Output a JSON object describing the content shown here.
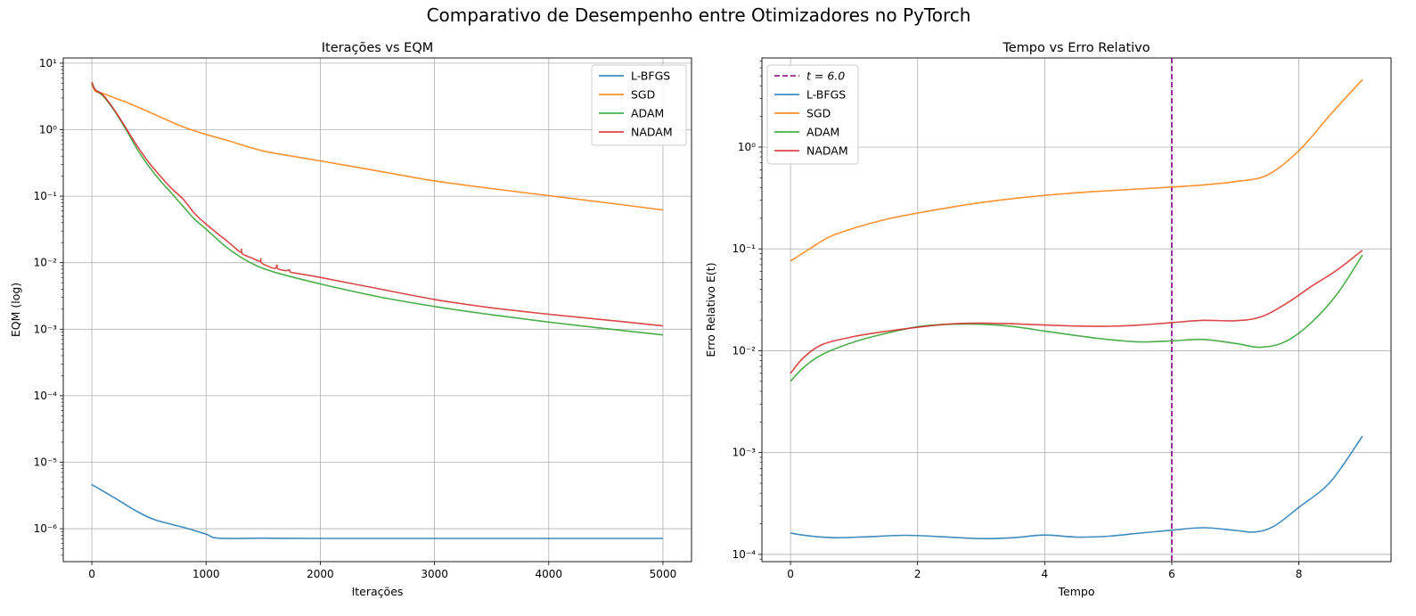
{
  "figure": {
    "title": "Comparativo de Desempenho entre Otimizadores no PyTorch"
  },
  "colors": {
    "L-BFGS": "#1f77b4",
    "SGD": "#ff7f0e",
    "ADAM": "#2ca02c",
    "NADAM": "#d62728",
    "vline": "#800080",
    "grid": "#b0b0b0"
  },
  "chart_data": [
    {
      "type": "line",
      "title": "Iterações vs EQM",
      "xlabel": "Iterações",
      "ylabel": "EQM (log)",
      "yscale": "log",
      "xlim": [
        -250,
        5250
      ],
      "ylim": [
        3.2e-07,
        12
      ],
      "xticks": [
        0,
        1000,
        2000,
        3000,
        4000,
        5000
      ],
      "xtick_labels": [
        "0",
        "1000",
        "2000",
        "3000",
        "4000",
        "5000"
      ],
      "yticks_exp": [
        -6,
        -5,
        -4,
        -3,
        -2,
        -1,
        0,
        1
      ],
      "ytick_labels": [
        "10⁻⁶",
        "10⁻⁵",
        "10⁻⁴",
        "10⁻³",
        "10⁻²",
        "10⁻¹",
        "10⁰",
        "10¹"
      ],
      "grid": true,
      "legend": {
        "position": "upper right",
        "entries": [
          "L-BFGS",
          "SGD",
          "ADAM",
          "NADAM"
        ]
      },
      "series": [
        {
          "name": "L-BFGS",
          "x": [
            0,
            200,
            400,
            560,
            800,
            1000,
            1110,
            1500,
            2000,
            3000,
            4000,
            5000
          ],
          "y": [
            4.6e-06,
            2.9e-06,
            1.8e-06,
            1.35e-06,
            1.05e-06,
            8.3e-07,
            7.2e-07,
            7.2e-07,
            7.15e-07,
            7.15e-07,
            7.15e-07,
            7.15e-07
          ]
        },
        {
          "name": "SGD",
          "x": [
            0,
            30,
            100,
            200,
            300,
            400,
            500,
            600,
            700,
            800,
            1000,
            1200,
            1500,
            2000,
            2500,
            3000,
            3500,
            4000,
            4500,
            5000
          ],
          "y": [
            5.0,
            3.8,
            3.5,
            3.0,
            2.6,
            2.2,
            1.85,
            1.55,
            1.3,
            1.1,
            0.85,
            0.68,
            0.48,
            0.34,
            0.24,
            0.17,
            0.13,
            0.102,
            0.08,
            0.062
          ]
        },
        {
          "name": "ADAM",
          "x": [
            0,
            30,
            100,
            200,
            300,
            400,
            500,
            600,
            700,
            800,
            900,
            1000,
            1200,
            1400,
            1600,
            2000,
            2500,
            3000,
            3500,
            4000,
            4500,
            5000
          ],
          "y": [
            5.0,
            4.0,
            3.2,
            1.9,
            1.0,
            0.5,
            0.28,
            0.17,
            0.11,
            0.07,
            0.045,
            0.032,
            0.016,
            0.0098,
            0.0072,
            0.0048,
            0.0031,
            0.0022,
            0.00165,
            0.00128,
            0.00102,
            0.00082
          ]
        },
        {
          "name": "NADAM",
          "x": [
            0,
            30,
            100,
            200,
            300,
            400,
            500,
            600,
            700,
            800,
            900,
            1000,
            1200,
            1300,
            1310,
            1320,
            1400,
            1470,
            1480,
            1490,
            1600,
            1620,
            1630,
            1700,
            1730,
            1740,
            1800,
            2000,
            2500,
            3000,
            3500,
            4000,
            4500,
            5000
          ],
          "y": [
            5.2,
            4.0,
            3.3,
            1.95,
            1.05,
            0.56,
            0.32,
            0.2,
            0.13,
            0.09,
            0.055,
            0.038,
            0.02,
            0.0145,
            0.016,
            0.0135,
            0.0118,
            0.0105,
            0.0115,
            0.0098,
            0.0082,
            0.0092,
            0.0081,
            0.0076,
            0.0078,
            0.0072,
            0.0069,
            0.006,
            0.0041,
            0.0028,
            0.0021,
            0.00168,
            0.00138,
            0.00112
          ]
        }
      ]
    },
    {
      "type": "line",
      "title": "Tempo vs Erro Relativo",
      "xlabel": "Tempo",
      "ylabel": "Erro Relativo E(t)",
      "yscale": "log",
      "xlim": [
        -0.45,
        9.45
      ],
      "ylim": [
        8.5e-05,
        7.5
      ],
      "xticks": [
        0,
        2,
        4,
        6,
        8
      ],
      "xtick_labels": [
        "0",
        "2",
        "4",
        "6",
        "8"
      ],
      "yticks_exp": [
        -4,
        -3,
        -2,
        -1,
        0
      ],
      "ytick_labels": [
        "10⁻⁴",
        "10⁻³",
        "10⁻²",
        "10⁻¹",
        "10⁰"
      ],
      "grid": true,
      "vline": {
        "x": 6.0,
        "label": "t = 6.0"
      },
      "legend": {
        "position": "upper left",
        "entries": [
          "t = 6.0",
          "L-BFGS",
          "SGD",
          "ADAM",
          "NADAM"
        ]
      },
      "series": [
        {
          "name": "L-BFGS",
          "x": [
            0,
            0.3,
            0.7,
            1.2,
            1.8,
            2.4,
            3.0,
            3.5,
            4.0,
            4.5,
            5.0,
            5.5,
            6.0,
            6.5,
            7.0,
            7.3,
            7.6,
            8.0,
            8.5,
            9.0
          ],
          "y": [
            0.000162,
            0.000152,
            0.000146,
            0.000149,
            0.000154,
            0.000149,
            0.000143,
            0.000146,
            0.000155,
            0.000148,
            0.000151,
            0.000162,
            0.000173,
            0.000183,
            0.000172,
            0.000166,
            0.000188,
            0.00029,
            0.00052,
            0.00145
          ]
        },
        {
          "name": "SGD",
          "x": [
            0,
            0.3,
            0.6,
            1.0,
            1.5,
            2.0,
            2.5,
            3.0,
            3.5,
            4.0,
            4.5,
            5.0,
            5.5,
            6.0,
            6.5,
            7.0,
            7.5,
            8.0,
            8.5,
            9.0
          ],
          "y": [
            0.076,
            0.1,
            0.13,
            0.16,
            0.195,
            0.225,
            0.255,
            0.285,
            0.312,
            0.335,
            0.356,
            0.373,
            0.388,
            0.405,
            0.425,
            0.458,
            0.53,
            0.92,
            2.1,
            4.6
          ]
        },
        {
          "name": "ADAM",
          "x": [
            0,
            0.2,
            0.5,
            1.0,
            1.5,
            2.0,
            2.5,
            3.0,
            3.5,
            4.0,
            4.5,
            5.0,
            5.5,
            6.0,
            6.5,
            7.0,
            7.4,
            7.8,
            8.2,
            8.6,
            9.0
          ],
          "y": [
            0.005,
            0.0068,
            0.0092,
            0.0122,
            0.0148,
            0.0172,
            0.0182,
            0.0182,
            0.0173,
            0.0156,
            0.0141,
            0.0129,
            0.0122,
            0.0125,
            0.0129,
            0.0118,
            0.0108,
            0.0124,
            0.019,
            0.036,
            0.087
          ]
        },
        {
          "name": "NADAM",
          "x": [
            0,
            0.2,
            0.5,
            1.0,
            1.5,
            2.0,
            2.5,
            3.0,
            3.5,
            4.0,
            4.5,
            5.0,
            5.5,
            6.0,
            6.5,
            7.0,
            7.4,
            7.8,
            8.2,
            8.6,
            9.0
          ],
          "y": [
            0.006,
            0.0085,
            0.0115,
            0.0138,
            0.0155,
            0.017,
            0.0183,
            0.0187,
            0.0184,
            0.0179,
            0.0175,
            0.0174,
            0.0179,
            0.0189,
            0.0199,
            0.0197,
            0.0215,
            0.029,
            0.043,
            0.062,
            0.097
          ]
        }
      ]
    }
  ]
}
